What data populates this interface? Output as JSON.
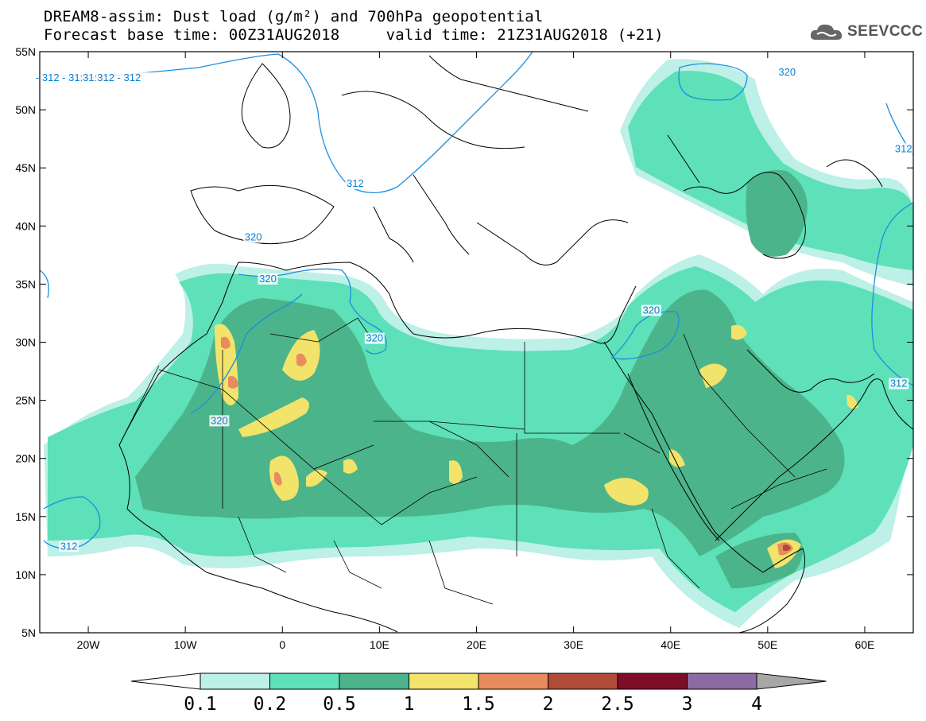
{
  "title": {
    "line1": "DREAM8-assim: Dust load (g/m²) and 700hPa geopotential",
    "line2": "Forecast base time: 00Z31AUG2018     valid time: 21Z31AUG2018 (+21)"
  },
  "logo": {
    "text": "SEEVCCC",
    "icon": "cloud-icon"
  },
  "map": {
    "lon_range": [
      -25,
      65
    ],
    "lat_range": [
      5,
      55
    ],
    "lat_ticks": [
      "5N",
      "10N",
      "15N",
      "20N",
      "25N",
      "30N",
      "35N",
      "40N",
      "45N",
      "50N",
      "55N"
    ],
    "lon_ticks": [
      "20W",
      "10W",
      "0",
      "10E",
      "20E",
      "30E",
      "40E",
      "50E",
      "60E"
    ],
    "contour_labels": [
      {
        "text": "- 312 - 31:31:312 - 312",
        "lon": -20,
        "lat": 52.6
      },
      {
        "text": "320",
        "lon": 52,
        "lat": 53.1
      },
      {
        "text": "312",
        "lon": 64,
        "lat": 46.5
      },
      {
        "text": "312",
        "lon": 7.5,
        "lat": 43.5
      },
      {
        "text": "320",
        "lon": -3,
        "lat": 38.9
      },
      {
        "text": "320",
        "lon": -1.5,
        "lat": 35.3
      },
      {
        "text": "320",
        "lon": 9.5,
        "lat": 30.2
      },
      {
        "text": "320",
        "lon": -6.5,
        "lat": 23.1
      },
      {
        "text": "320",
        "lon": 38,
        "lat": 32.6
      },
      {
        "text": "312",
        "lon": 63.5,
        "lat": 26.3
      },
      {
        "text": "312",
        "lon": -22,
        "lat": 12.3
      }
    ]
  },
  "colorbar": {
    "colors": [
      "#bdf0e6",
      "#5ee0b8",
      "#4cb48a",
      "#f2e36a",
      "#e88c60",
      "#b04b38",
      "#7e0e27",
      "#8b6ca2",
      "#a7a7a7"
    ],
    "labels": [
      "0.1",
      "0.2",
      "0.5",
      "1",
      "1.5",
      "2",
      "2.5",
      "3",
      "4"
    ]
  }
}
